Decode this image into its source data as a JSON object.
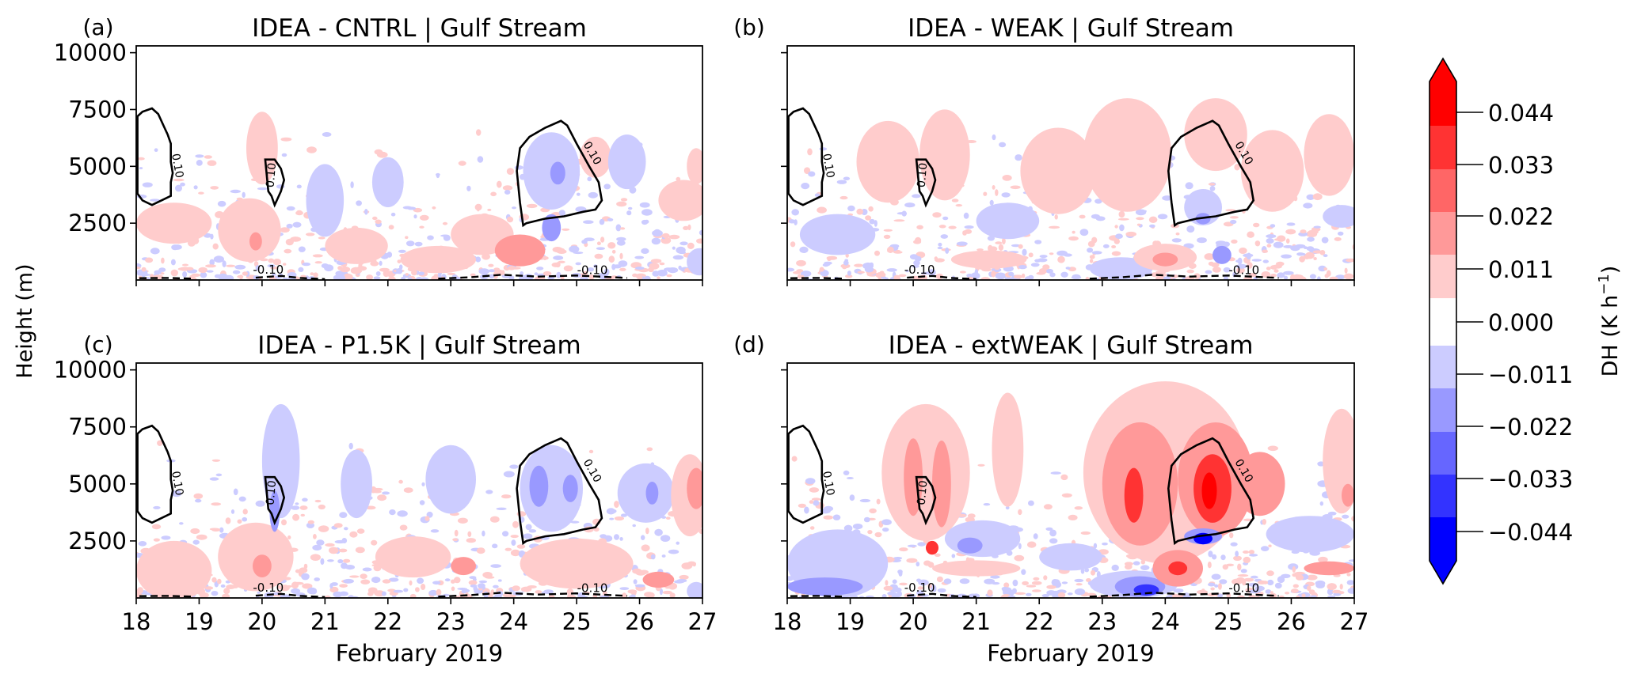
{
  "chart_data": {
    "type": "heatmap",
    "figure_ylabel": "Height (m)",
    "xlabel": "February 2019",
    "xlim": [
      18,
      27
    ],
    "ylim": [
      0,
      10300
    ],
    "x_ticks": [
      18,
      19,
      20,
      21,
      22,
      23,
      24,
      25,
      26,
      27
    ],
    "x_tick_labels": [
      "18",
      "19",
      "20",
      "21",
      "22",
      "23",
      "24",
      "25",
      "26",
      "27"
    ],
    "y_ticks": [
      2500,
      5000,
      7500,
      10000
    ],
    "y_tick_labels": [
      "2500",
      "5000",
      "7500",
      "10000"
    ],
    "colorbar": {
      "label": "DH (K h",
      "label_sup": "−1",
      "label_close": ")",
      "extend": "both",
      "ticks": [
        0.044,
        0.033,
        0.022,
        0.011,
        0.0,
        -0.011,
        -0.022,
        -0.033,
        -0.044
      ],
      "tick_labels": [
        "0.044",
        "0.033",
        "0.022",
        "0.011",
        "0.000",
        "−0.011",
        "−0.022",
        "−0.033",
        "−0.044"
      ],
      "band_colors_top_to_bottom": [
        "#ff0000",
        "#ff3333",
        "#ff6666",
        "#ff9999",
        "#ffcccc",
        "#ffffff",
        "#ccccff",
        "#9999ff",
        "#6666ff",
        "#3333ff",
        "#0000ff"
      ],
      "band_limits": [
        0.055,
        -0.055
      ]
    },
    "contour_label": "0.10",
    "contour_label_neg": "-0.10",
    "contours_solid": [
      {
        "name": "contour-left",
        "points": [
          [
            18.02,
            7200
          ],
          [
            18.1,
            7400
          ],
          [
            18.25,
            7550
          ],
          [
            18.35,
            7300
          ],
          [
            18.45,
            6700
          ],
          [
            18.5,
            6400
          ],
          [
            18.55,
            6000
          ],
          [
            18.55,
            5200
          ],
          [
            18.58,
            4700
          ],
          [
            18.55,
            4300
          ],
          [
            18.55,
            3700
          ],
          [
            18.4,
            3500
          ],
          [
            18.25,
            3300
          ],
          [
            18.1,
            3500
          ],
          [
            18.02,
            3800
          ]
        ]
      },
      {
        "name": "contour-mid",
        "points": [
          [
            20.05,
            5300
          ],
          [
            20.2,
            5300
          ],
          [
            20.3,
            4900
          ],
          [
            20.35,
            4400
          ],
          [
            20.3,
            3900
          ],
          [
            20.25,
            3600
          ],
          [
            20.2,
            3300
          ],
          [
            20.15,
            3700
          ],
          [
            20.1,
            3900
          ]
        ]
      },
      {
        "name": "contour-right",
        "points": [
          [
            24.1,
            5800
          ],
          [
            24.25,
            6300
          ],
          [
            24.5,
            6700
          ],
          [
            24.75,
            7000
          ],
          [
            24.85,
            6800
          ],
          [
            25.0,
            6000
          ],
          [
            25.2,
            5000
          ],
          [
            25.35,
            4300
          ],
          [
            25.4,
            3500
          ],
          [
            25.3,
            3100
          ],
          [
            25.1,
            3000
          ],
          [
            24.8,
            2800
          ],
          [
            24.5,
            2700
          ],
          [
            24.2,
            2500
          ],
          [
            24.15,
            2400
          ],
          [
            24.1,
            3400
          ],
          [
            24.05,
            4800
          ]
        ]
      }
    ],
    "panels": [
      {
        "id": "a",
        "letter": "(a)",
        "title": "IDEA - CNTRL | Gulf Stream",
        "show_y_tick_labels": true,
        "show_x_tick_labels": false,
        "show_xlabel": false,
        "blobs": [
          {
            "x": 19.8,
            "y": 2200,
            "rx": 0.5,
            "ry": 1400,
            "v": 0.011
          },
          {
            "x": 19.9,
            "y": 1700,
            "rx": 0.1,
            "ry": 400,
            "v": 0.022
          },
          {
            "x": 20.0,
            "y": 5800,
            "rx": 0.25,
            "ry": 1600,
            "v": 0.011
          },
          {
            "x": 18.6,
            "y": 2500,
            "rx": 0.6,
            "ry": 900,
            "v": 0.011
          },
          {
            "x": 21.0,
            "y": 3500,
            "rx": 0.3,
            "ry": 1600,
            "v": -0.011
          },
          {
            "x": 21.5,
            "y": 1500,
            "rx": 0.5,
            "ry": 800,
            "v": 0.011
          },
          {
            "x": 22.0,
            "y": 4300,
            "rx": 0.25,
            "ry": 1100,
            "v": -0.011
          },
          {
            "x": 22.8,
            "y": 900,
            "rx": 0.6,
            "ry": 600,
            "v": 0.011
          },
          {
            "x": 23.5,
            "y": 2000,
            "rx": 0.5,
            "ry": 900,
            "v": 0.011
          },
          {
            "x": 24.1,
            "y": 1300,
            "rx": 0.4,
            "ry": 700,
            "v": 0.022
          },
          {
            "x": 24.6,
            "y": 4800,
            "rx": 0.45,
            "ry": 1700,
            "v": -0.011
          },
          {
            "x": 24.7,
            "y": 4700,
            "rx": 0.12,
            "ry": 500,
            "v": -0.022
          },
          {
            "x": 24.6,
            "y": 2300,
            "rx": 0.15,
            "ry": 600,
            "v": -0.022
          },
          {
            "x": 25.3,
            "y": 5400,
            "rx": 0.25,
            "ry": 900,
            "v": 0.011
          },
          {
            "x": 25.8,
            "y": 5200,
            "rx": 0.3,
            "ry": 1200,
            "v": -0.011
          },
          {
            "x": 26.7,
            "y": 3500,
            "rx": 0.4,
            "ry": 900,
            "v": 0.011
          },
          {
            "x": 26.9,
            "y": 5000,
            "rx": 0.15,
            "ry": 800,
            "v": 0.011
          },
          {
            "x": 26.95,
            "y": 800,
            "rx": 0.2,
            "ry": 600,
            "v": -0.011
          }
        ]
      },
      {
        "id": "b",
        "letter": "(b)",
        "title": "IDEA - WEAK | Gulf Stream",
        "show_y_tick_labels": false,
        "show_x_tick_labels": false,
        "show_xlabel": false,
        "blobs": [
          {
            "x": 19.6,
            "y": 5200,
            "rx": 0.5,
            "ry": 1800,
            "v": 0.011
          },
          {
            "x": 20.5,
            "y": 5500,
            "rx": 0.4,
            "ry": 2000,
            "v": 0.011
          },
          {
            "x": 18.8,
            "y": 2000,
            "rx": 0.6,
            "ry": 900,
            "v": -0.011
          },
          {
            "x": 21.5,
            "y": 2600,
            "rx": 0.5,
            "ry": 800,
            "v": -0.011
          },
          {
            "x": 21.2,
            "y": 900,
            "rx": 0.6,
            "ry": 400,
            "v": 0.011
          },
          {
            "x": 22.3,
            "y": 4800,
            "rx": 0.6,
            "ry": 1900,
            "v": 0.011
          },
          {
            "x": 23.4,
            "y": 5500,
            "rx": 0.7,
            "ry": 2500,
            "v": 0.011
          },
          {
            "x": 23.3,
            "y": 500,
            "rx": 0.5,
            "ry": 500,
            "v": -0.011
          },
          {
            "x": 24.0,
            "y": 1000,
            "rx": 0.5,
            "ry": 600,
            "v": 0.011
          },
          {
            "x": 24.0,
            "y": 900,
            "rx": 0.2,
            "ry": 300,
            "v": 0.022
          },
          {
            "x": 24.8,
            "y": 6400,
            "rx": 0.5,
            "ry": 1600,
            "v": 0.011
          },
          {
            "x": 24.6,
            "y": 3200,
            "rx": 0.3,
            "ry": 800,
            "v": -0.011
          },
          {
            "x": 24.6,
            "y": 2700,
            "rx": 0.12,
            "ry": 250,
            "v": -0.022
          },
          {
            "x": 24.9,
            "y": 1100,
            "rx": 0.15,
            "ry": 400,
            "v": -0.022
          },
          {
            "x": 25.7,
            "y": 4800,
            "rx": 0.5,
            "ry": 1800,
            "v": 0.011
          },
          {
            "x": 26.6,
            "y": 5500,
            "rx": 0.4,
            "ry": 1800,
            "v": 0.011
          },
          {
            "x": 26.8,
            "y": 2800,
            "rx": 0.3,
            "ry": 500,
            "v": -0.011
          }
        ]
      },
      {
        "id": "c",
        "letter": "(c)",
        "title": "IDEA - P1.5K | Gulf Stream",
        "show_y_tick_labels": true,
        "show_x_tick_labels": true,
        "show_xlabel": true,
        "blobs": [
          {
            "x": 18.6,
            "y": 1200,
            "rx": 0.6,
            "ry": 1300,
            "v": 0.011
          },
          {
            "x": 19.9,
            "y": 1800,
            "rx": 0.6,
            "ry": 1500,
            "v": 0.011
          },
          {
            "x": 20.0,
            "y": 1400,
            "rx": 0.15,
            "ry": 500,
            "v": 0.022
          },
          {
            "x": 20.3,
            "y": 6000,
            "rx": 0.3,
            "ry": 2500,
            "v": -0.011
          },
          {
            "x": 20.2,
            "y": 3800,
            "rx": 0.08,
            "ry": 900,
            "v": -0.022
          },
          {
            "x": 21.5,
            "y": 5000,
            "rx": 0.25,
            "ry": 1500,
            "v": -0.011
          },
          {
            "x": 22.4,
            "y": 1800,
            "rx": 0.6,
            "ry": 900,
            "v": 0.011
          },
          {
            "x": 23.0,
            "y": 5200,
            "rx": 0.4,
            "ry": 1500,
            "v": -0.011
          },
          {
            "x": 23.2,
            "y": 1400,
            "rx": 0.2,
            "ry": 400,
            "v": 0.022
          },
          {
            "x": 24.6,
            "y": 4800,
            "rx": 0.5,
            "ry": 1900,
            "v": -0.011
          },
          {
            "x": 24.4,
            "y": 4900,
            "rx": 0.15,
            "ry": 900,
            "v": -0.022
          },
          {
            "x": 24.9,
            "y": 4800,
            "rx": 0.12,
            "ry": 600,
            "v": -0.022
          },
          {
            "x": 25.0,
            "y": 1500,
            "rx": 0.9,
            "ry": 1100,
            "v": 0.011
          },
          {
            "x": 26.1,
            "y": 4600,
            "rx": 0.45,
            "ry": 1300,
            "v": -0.011
          },
          {
            "x": 26.2,
            "y": 4600,
            "rx": 0.1,
            "ry": 500,
            "v": -0.022
          },
          {
            "x": 26.8,
            "y": 4500,
            "rx": 0.3,
            "ry": 1800,
            "v": 0.011
          },
          {
            "x": 26.9,
            "y": 4800,
            "rx": 0.15,
            "ry": 900,
            "v": 0.022
          },
          {
            "x": 26.3,
            "y": 800,
            "rx": 0.25,
            "ry": 350,
            "v": 0.022
          },
          {
            "x": 26.9,
            "y": 300,
            "rx": 0.15,
            "ry": 400,
            "v": -0.011
          }
        ]
      },
      {
        "id": "d",
        "letter": "(d)",
        "title": "IDEA - extWEAK | Gulf Stream",
        "show_y_tick_labels": false,
        "show_x_tick_labels": true,
        "show_xlabel": true,
        "blobs": [
          {
            "x": 18.8,
            "y": 1500,
            "rx": 0.8,
            "ry": 1500,
            "v": -0.011
          },
          {
            "x": 18.6,
            "y": 500,
            "rx": 0.6,
            "ry": 400,
            "v": -0.022
          },
          {
            "x": 20.2,
            "y": 5500,
            "rx": 0.7,
            "ry": 3000,
            "v": 0.011
          },
          {
            "x": 20.0,
            "y": 5300,
            "rx": 0.15,
            "ry": 1700,
            "v": 0.022
          },
          {
            "x": 20.45,
            "y": 5000,
            "rx": 0.15,
            "ry": 1900,
            "v": 0.022
          },
          {
            "x": 20.3,
            "y": 2200,
            "rx": 0.1,
            "ry": 300,
            "v": 0.033
          },
          {
            "x": 21.1,
            "y": 2600,
            "rx": 0.6,
            "ry": 800,
            "v": -0.011
          },
          {
            "x": 20.9,
            "y": 2300,
            "rx": 0.2,
            "ry": 350,
            "v": -0.022
          },
          {
            "x": 21.0,
            "y": 1300,
            "rx": 0.7,
            "ry": 350,
            "v": 0.011
          },
          {
            "x": 21.5,
            "y": 6500,
            "rx": 0.25,
            "ry": 2500,
            "v": 0.011
          },
          {
            "x": 22.5,
            "y": 1800,
            "rx": 0.5,
            "ry": 600,
            "v": -0.011
          },
          {
            "x": 24.0,
            "y": 5500,
            "rx": 1.3,
            "ry": 4000,
            "v": 0.011
          },
          {
            "x": 23.6,
            "y": 5000,
            "rx": 0.6,
            "ry": 2700,
            "v": 0.022
          },
          {
            "x": 23.5,
            "y": 4500,
            "rx": 0.15,
            "ry": 1200,
            "v": 0.033
          },
          {
            "x": 24.8,
            "y": 5200,
            "rx": 0.6,
            "ry": 2500,
            "v": 0.022
          },
          {
            "x": 24.75,
            "y": 4800,
            "rx": 0.3,
            "ry": 1500,
            "v": 0.033
          },
          {
            "x": 24.7,
            "y": 4700,
            "rx": 0.12,
            "ry": 800,
            "v": 0.044
          },
          {
            "x": 25.5,
            "y": 5000,
            "rx": 0.4,
            "ry": 1400,
            "v": 0.022
          },
          {
            "x": 23.5,
            "y": 600,
            "rx": 0.7,
            "ry": 600,
            "v": -0.011
          },
          {
            "x": 23.6,
            "y": 500,
            "rx": 0.4,
            "ry": 450,
            "v": -0.022
          },
          {
            "x": 23.7,
            "y": 350,
            "rx": 0.2,
            "ry": 250,
            "v": -0.033
          },
          {
            "x": 24.2,
            "y": 1300,
            "rx": 0.4,
            "ry": 800,
            "v": 0.022
          },
          {
            "x": 24.2,
            "y": 1300,
            "rx": 0.15,
            "ry": 300,
            "v": 0.033
          },
          {
            "x": 24.6,
            "y": 2700,
            "rx": 0.3,
            "ry": 350,
            "v": -0.022
          },
          {
            "x": 24.6,
            "y": 2600,
            "rx": 0.15,
            "ry": 250,
            "v": -0.044
          },
          {
            "x": 26.3,
            "y": 2800,
            "rx": 0.7,
            "ry": 800,
            "v": -0.011
          },
          {
            "x": 26.6,
            "y": 1300,
            "rx": 0.4,
            "ry": 300,
            "v": 0.022
          },
          {
            "x": 26.8,
            "y": 6000,
            "rx": 0.3,
            "ry": 2300,
            "v": 0.011
          },
          {
            "x": 26.9,
            "y": 4500,
            "rx": 0.1,
            "ry": 500,
            "v": 0.022
          }
        ]
      }
    ]
  }
}
